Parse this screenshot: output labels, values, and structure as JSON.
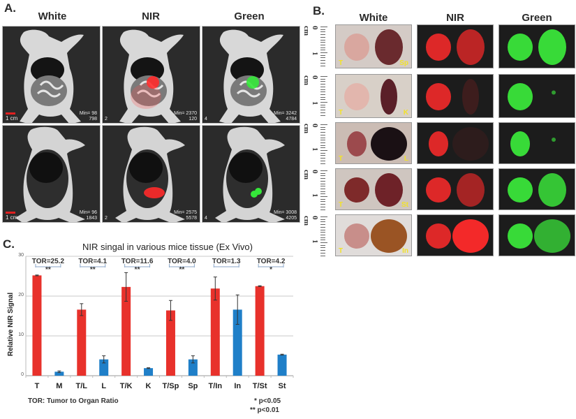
{
  "panel_a": {
    "label": "A.",
    "columns": [
      "White",
      "NIR",
      "Green"
    ],
    "rows": [
      {
        "images": [
          {
            "min_text": "Min= 98",
            "max_text": "798",
            "index": "",
            "scale_label": "1 cm"
          },
          {
            "min_text": "Min= 2370",
            "max_text": "120",
            "index": "2",
            "scale_label": ""
          },
          {
            "min_text": "Min= 3242",
            "max_text": "4784",
            "index": "4",
            "scale_label": ""
          }
        ]
      },
      {
        "images": [
          {
            "min_text": "Min= 96",
            "max_text": "1843",
            "index": "",
            "scale_label": "1 cm"
          },
          {
            "min_text": "Min= 2575",
            "max_text": "5578",
            "index": "2",
            "scale_label": ""
          },
          {
            "min_text": "Min= 3008",
            "max_text": "4205",
            "index": "4",
            "scale_label": ""
          }
        ]
      }
    ]
  },
  "panel_b": {
    "label": "B.",
    "columns": [
      "White",
      "NIR",
      "Green"
    ],
    "ruler": {
      "zero": "0",
      "unit": "cm",
      "one": "1"
    },
    "rows": [
      {
        "left": "T",
        "right": "Sp"
      },
      {
        "left": "T",
        "right": "K"
      },
      {
        "left": "T",
        "right": "L"
      },
      {
        "left": "T",
        "right": "St"
      },
      {
        "left": "T",
        "right": "In"
      }
    ]
  },
  "panel_c": {
    "label": "C.",
    "footnote_left": "TOR: Tumor to Organ Ratio",
    "footnote_sig1": "* p<0.05",
    "footnote_sig2": "** p<0.01"
  },
  "chart_data": {
    "type": "bar",
    "title": "NIR singal in various mice tissue (Ex Vivo)",
    "xlabel": "",
    "ylabel": "Relative NIR Signal",
    "ylim": [
      0,
      30
    ],
    "yticks": [
      0,
      10,
      20,
      30
    ],
    "grid": true,
    "categories": [
      "T",
      "M",
      "T/L",
      "L",
      "T/K",
      "K",
      "T/Sp",
      "Sp",
      "T/In",
      "In",
      "T/St",
      "St"
    ],
    "values": [
      25.2,
      1.0,
      16.6,
      4.1,
      22.3,
      1.9,
      16.4,
      4.1,
      21.9,
      16.6,
      22.5,
      5.3
    ],
    "errors": [
      0.1,
      0.2,
      1.5,
      0.9,
      3.6,
      0.1,
      2.5,
      0.9,
      2.9,
      3.7,
      0.1,
      0.1
    ],
    "colors": [
      "#e8312b",
      "#1f7fc8",
      "#e8312b",
      "#1f7fc8",
      "#e8312b",
      "#1f7fc8",
      "#e8312b",
      "#1f7fc8",
      "#e8312b",
      "#1f7fc8",
      "#e8312b",
      "#1f7fc8"
    ],
    "annotations": [
      {
        "pair": [
          "T",
          "M"
        ],
        "text": "TOR=25.2",
        "sig": "**"
      },
      {
        "pair": [
          "T/L",
          "L"
        ],
        "text": "TOR=4.1",
        "sig": "**"
      },
      {
        "pair": [
          "T/K",
          "K"
        ],
        "text": "TOR=11.6",
        "sig": "**"
      },
      {
        "pair": [
          "T/Sp",
          "Sp"
        ],
        "text": "TOR=4.0",
        "sig": "**"
      },
      {
        "pair": [
          "T/In",
          "In"
        ],
        "text": "TOR=1.3",
        "sig": ""
      },
      {
        "pair": [
          "T/St",
          "St"
        ],
        "text": "TOR=4.2",
        "sig": "*"
      }
    ],
    "series_colors": {
      "tumor": "#e8312b",
      "organ": "#1f7fc8"
    }
  }
}
